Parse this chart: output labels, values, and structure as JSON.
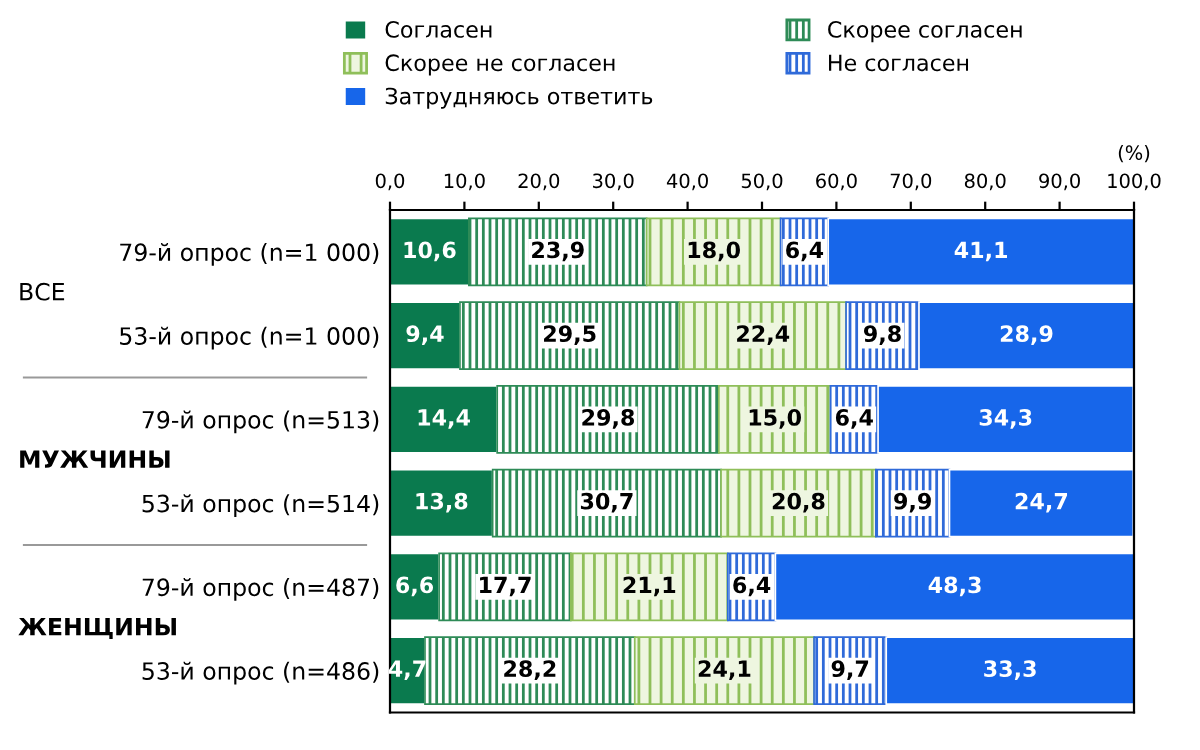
{
  "chart_data": {
    "type": "bar",
    "orientation": "horizontal",
    "stacked": true,
    "legend": "top",
    "grid": false,
    "categories": [
      "79-й опрос (n=1 000)",
      "53-й опрос (n=1 000)",
      "79-й опрос (n=513)",
      "53-й опрос (n=514)",
      "79-й опрос (n=487)",
      "53-й опрос (n=486)"
    ],
    "series": [
      {
        "name": "Согласен",
        "color": "#0a7a4e",
        "values": [
          10.6,
          9.4,
          14.4,
          13.8,
          6.6,
          4.7
        ],
        "value_labels": [
          "10,6",
          "9,4",
          "14,4",
          "13,8",
          "6,6",
          "4,7"
        ]
      },
      {
        "name": "Скорее согласен",
        "color": "#2e8b57",
        "values": [
          23.9,
          29.5,
          29.8,
          30.7,
          17.7,
          28.2
        ],
        "value_labels": [
          "23,9",
          "29,5",
          "29,8",
          "30,7",
          "17,7",
          "28,2"
        ]
      },
      {
        "name": "Скорее не согласен",
        "color": "#8fbf5a",
        "values": [
          18.0,
          22.4,
          15.0,
          20.8,
          21.1,
          24.1
        ],
        "value_labels": [
          "18,0",
          "22,4",
          "15,0",
          "20,8",
          "21,1",
          "24,1"
        ]
      },
      {
        "name": "Не согласен",
        "color": "#2f6ad9",
        "values": [
          6.4,
          9.8,
          6.4,
          9.9,
          6.4,
          9.7
        ],
        "value_labels": [
          "6,4",
          "9,8",
          "6,4",
          "9,9",
          "6,4",
          "9,7"
        ]
      },
      {
        "name": "Затрудняюсь ответить",
        "color": "#1766ea",
        "values": [
          41.1,
          28.9,
          34.3,
          24.7,
          48.3,
          33.3
        ],
        "value_labels": [
          "41,1",
          "28,9",
          "34,3",
          "24,7",
          "48,3",
          "33,3"
        ]
      }
    ],
    "xlim": [
      0,
      100
    ],
    "xticks": [
      {
        "value": 0,
        "label": "0,0"
      },
      {
        "value": 10,
        "label": "10,0"
      },
      {
        "value": 20,
        "label": "20,0"
      },
      {
        "value": 30,
        "label": "30,0"
      },
      {
        "value": 40,
        "label": "40,0"
      },
      {
        "value": 50,
        "label": "50,0"
      },
      {
        "value": 60,
        "label": "60,0"
      },
      {
        "value": 70,
        "label": "70,0"
      },
      {
        "value": 80,
        "label": "80,0"
      },
      {
        "value": 90,
        "label": "90,0"
      },
      {
        "value": 100,
        "label": "100,0"
      }
    ],
    "xlabel": "(%)",
    "annotations": [
      "ВСЕ",
      "МУЖЧИНЫ",
      "ЖЕНЩИНЫ"
    ]
  }
}
